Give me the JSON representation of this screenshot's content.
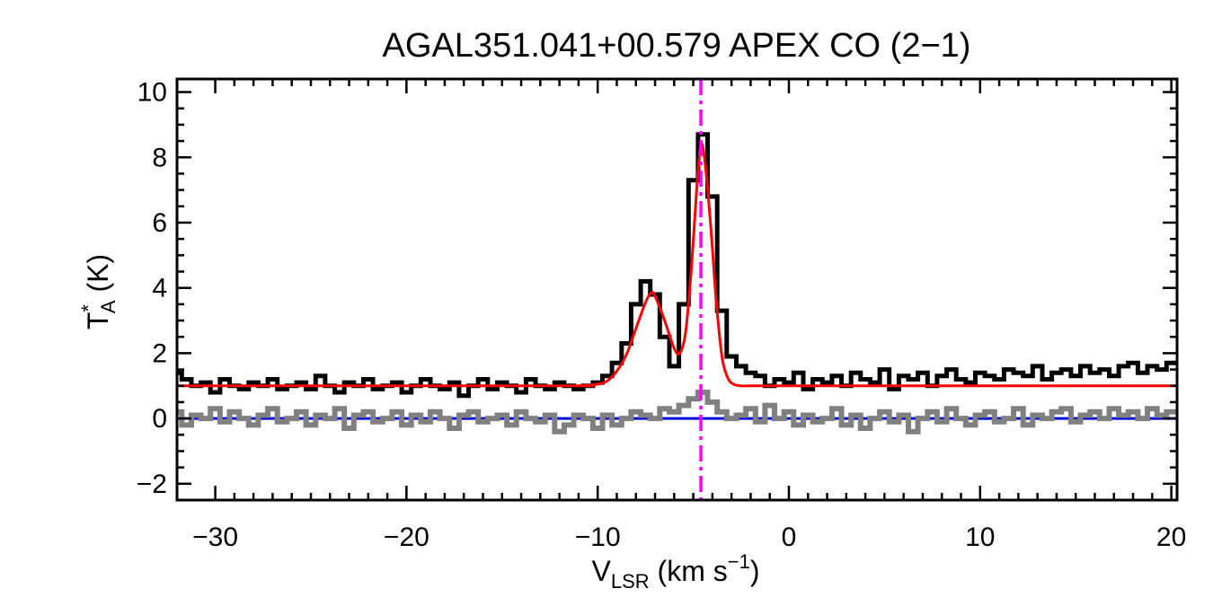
{
  "chart_data": {
    "type": "line",
    "title": "AGAL351.041+00.579  APEX CO (2−1)",
    "xlabel": {
      "main": "V",
      "sub": "LSR",
      "rest": " (km s",
      "sup": "−1",
      "end": ")"
    },
    "ylabel": {
      "main": "T",
      "sup": "*",
      "sub": "A",
      "rest": " (K)"
    },
    "xlim": [
      -32,
      20.3
    ],
    "ylim": [
      -2.5,
      10.4
    ],
    "x_ticks": [
      -30,
      -20,
      -10,
      0,
      10,
      20
    ],
    "x_tick_labels": [
      "−30",
      "−20",
      "−10",
      "0",
      "10",
      "20"
    ],
    "y_ticks": [
      -2,
      0,
      2,
      4,
      6,
      8,
      10
    ],
    "y_tick_labels": [
      "−2",
      "0",
      "2",
      "4",
      "6",
      "8",
      "10"
    ],
    "vertical_line": {
      "x": -4.6,
      "color": "#ff00ff",
      "style": "dash-dot"
    },
    "zero_line": {
      "y": 0,
      "color": "#0000dd"
    },
    "series": [
      {
        "color": "#000000",
        "style": "histogram",
        "x": [
          -32,
          -31.5,
          -31,
          -30.5,
          -30,
          -29.5,
          -29,
          -28.5,
          -28,
          -27.5,
          -27,
          -26.5,
          -26,
          -25.5,
          -25,
          -24.5,
          -24,
          -23.5,
          -23,
          -22.5,
          -22,
          -21.5,
          -21,
          -20.5,
          -20,
          -19.5,
          -19,
          -18.5,
          -18,
          -17.5,
          -17,
          -16.5,
          -16,
          -15.5,
          -15,
          -14.5,
          -14,
          -13.5,
          -13,
          -12.5,
          -12,
          -11.5,
          -11,
          -10.5,
          -10,
          -9.5,
          -9,
          -8.5,
          -8,
          -7.5,
          -7,
          -6.5,
          -6,
          -5.5,
          -5,
          -4.5,
          -4,
          -3.5,
          -3,
          -2.5,
          -2,
          -1.5,
          -1,
          -0.5,
          0,
          0.5,
          1,
          1.5,
          2,
          2.5,
          3,
          3.5,
          4,
          4.5,
          5,
          5.5,
          6,
          6.5,
          7,
          7.5,
          8,
          8.5,
          9,
          9.5,
          10,
          10.5,
          11,
          11.5,
          12,
          12.5,
          13,
          13.5,
          14,
          14.5,
          15,
          15.5,
          16,
          16.5,
          17,
          17.5,
          18,
          18.5,
          19,
          19.5,
          20
        ],
        "y": [
          1.4,
          1.2,
          1.0,
          1.1,
          0.8,
          1.2,
          1.0,
          0.9,
          1.1,
          1.0,
          1.2,
          0.9,
          1.0,
          1.1,
          0.9,
          1.3,
          1.0,
          0.8,
          1.1,
          1.0,
          1.2,
          0.9,
          1.0,
          1.1,
          0.8,
          1.0,
          1.2,
          1.0,
          0.9,
          1.1,
          0.7,
          1.0,
          1.2,
          0.9,
          1.1,
          1.0,
          0.8,
          1.2,
          1.0,
          0.9,
          1.1,
          1.0,
          0.9,
          1.0,
          1.1,
          1.3,
          1.7,
          2.3,
          3.5,
          4.2,
          3.8,
          2.5,
          1.6,
          3.5,
          7.3,
          8.7,
          6.8,
          3.3,
          1.9,
          1.6,
          1.4,
          1.3,
          1.0,
          1.2,
          1.1,
          1.4,
          0.9,
          1.2,
          1.1,
          1.3,
          1.0,
          1.4,
          1.2,
          1.1,
          1.5,
          0.9,
          1.3,
          1.2,
          1.4,
          1.0,
          1.3,
          1.5,
          1.2,
          1.1,
          1.4,
          1.3,
          1.2,
          1.5,
          1.4,
          1.3,
          1.6,
          1.2,
          1.4,
          1.5,
          1.3,
          1.6,
          1.4,
          1.5,
          1.3,
          1.6,
          1.7,
          1.4,
          1.6,
          1.5,
          1.7
        ]
      },
      {
        "color": "#808080",
        "style": "histogram",
        "x": [
          -32,
          -31.5,
          -31,
          -30.5,
          -30,
          -29.5,
          -29,
          -28.5,
          -28,
          -27.5,
          -27,
          -26.5,
          -26,
          -25.5,
          -25,
          -24.5,
          -24,
          -23.5,
          -23,
          -22.5,
          -22,
          -21.5,
          -21,
          -20.5,
          -20,
          -19.5,
          -19,
          -18.5,
          -18,
          -17.5,
          -17,
          -16.5,
          -16,
          -15.5,
          -15,
          -14.5,
          -14,
          -13.5,
          -13,
          -12.5,
          -12,
          -11.5,
          -11,
          -10.5,
          -10,
          -9.5,
          -9,
          -8.5,
          -8,
          -7.5,
          -7,
          -6.5,
          -6,
          -5.5,
          -5,
          -4.5,
          -4,
          -3.5,
          -3,
          -2.5,
          -2,
          -1.5,
          -1,
          -0.5,
          0,
          0.5,
          1,
          1.5,
          2,
          2.5,
          3,
          3.5,
          4,
          4.5,
          5,
          5.5,
          6,
          6.5,
          7,
          7.5,
          8,
          8.5,
          9,
          9.5,
          10,
          10.5,
          11,
          11.5,
          12,
          12.5,
          13,
          13.5,
          14,
          14.5,
          15,
          15.5,
          16,
          16.5,
          17,
          17.5,
          18,
          18.5,
          19,
          19.5,
          20
        ],
        "y": [
          0.2,
          -0.2,
          0.1,
          0.0,
          0.3,
          -0.1,
          0.2,
          0.0,
          -0.2,
          0.1,
          0.3,
          -0.1,
          0.0,
          0.2,
          -0.2,
          0.1,
          0.0,
          0.3,
          -0.3,
          0.1,
          0.2,
          -0.1,
          0.0,
          0.2,
          -0.2,
          0.1,
          -0.1,
          0.2,
          0.0,
          -0.3,
          0.1,
          0.2,
          -0.1,
          0.0,
          0.1,
          -0.2,
          0.2,
          0.0,
          -0.1,
          0.1,
          -0.4,
          -0.2,
          0.1,
          0.0,
          -0.3,
          0.1,
          -0.2,
          0.0,
          0.2,
          0.1,
          0.0,
          0.3,
          0.2,
          0.4,
          0.6,
          0.8,
          0.5,
          0.2,
          0.0,
          0.1,
          0.3,
          -0.1,
          0.4,
          0.0,
          0.2,
          -0.2,
          0.1,
          -0.1,
          0.0,
          0.3,
          -0.2,
          0.1,
          -0.3,
          0.0,
          0.2,
          -0.1,
          0.1,
          -0.4,
          0.0,
          0.2,
          -0.1,
          0.3,
          0.0,
          -0.2,
          0.1,
          0.2,
          -0.1,
          0.0,
          0.3,
          -0.2,
          0.1,
          0.0,
          0.2,
          0.3,
          -0.1,
          0.1,
          0.2,
          0.0,
          0.3,
          0.1,
          0.2,
          0.0,
          0.3,
          0.1,
          0.2
        ]
      },
      {
        "color": "#ff0000",
        "style": "smooth",
        "x": [
          -32,
          -12,
          -11,
          -10,
          -9.5,
          -9,
          -8.5,
          -8,
          -7.5,
          -7.2,
          -7,
          -6.5,
          -6,
          -5.7,
          -5.4,
          -5.1,
          -4.8,
          -4.6,
          -4.4,
          -4.1,
          -3.8,
          -3.5,
          -3.2,
          -2.9,
          -2.5,
          -2,
          0,
          20.3
        ],
        "y": [
          1.0,
          1.0,
          1.0,
          1.05,
          1.15,
          1.45,
          1.95,
          2.75,
          3.55,
          3.85,
          3.75,
          3.0,
          2.15,
          2.0,
          2.65,
          4.6,
          7.2,
          8.4,
          7.9,
          6.0,
          3.6,
          1.9,
          1.25,
          1.05,
          1.0,
          1.0,
          1.0,
          1.0
        ]
      }
    ]
  }
}
